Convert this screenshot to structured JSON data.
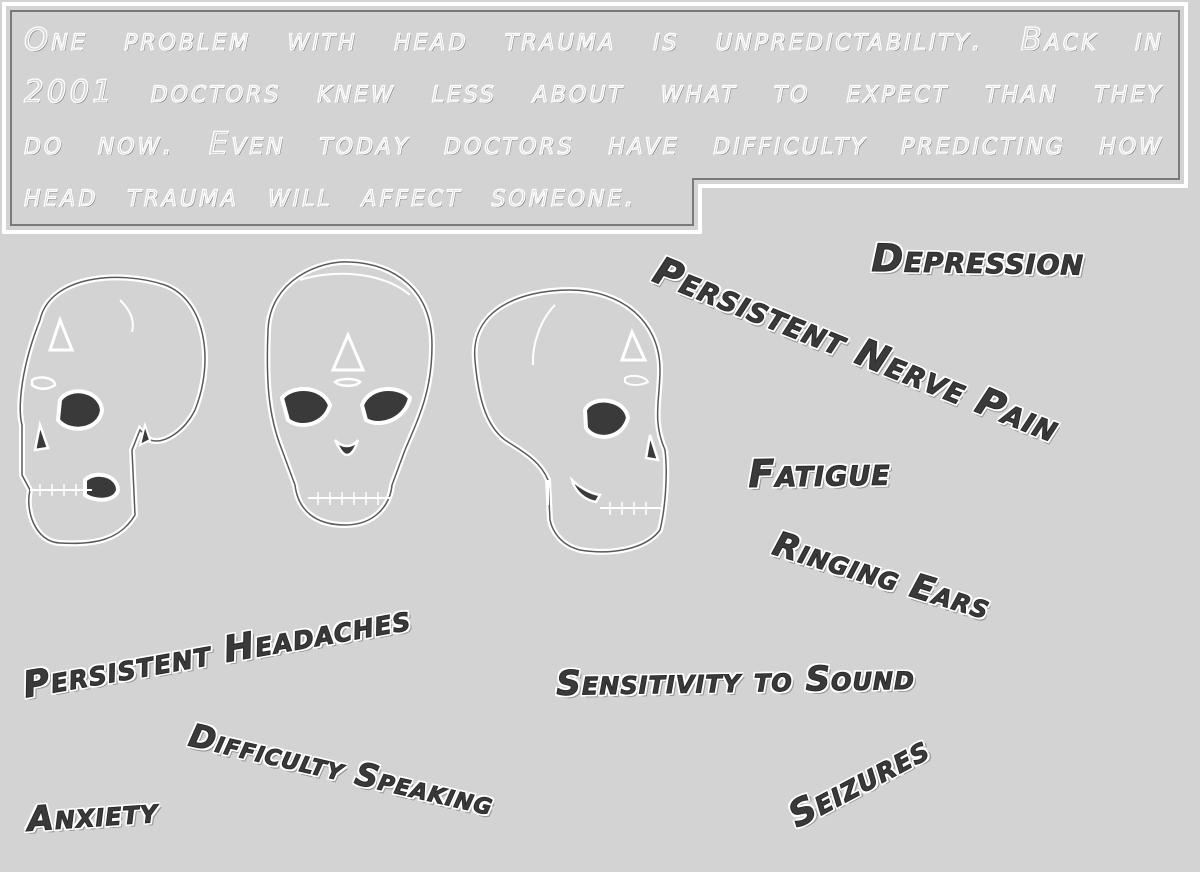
{
  "caption": {
    "text": "One problem with head trauma is unpredictability. Back in 2001 doctors knew less about what to expect than they do now. Even today doctors have difficulty predicting how head trauma will affect someone."
  },
  "symptoms": {
    "depression": "Depression",
    "nerve_pain": "Persistent Nerve Pain",
    "fatigue": "Fatigue",
    "ringing_ears": "Ringing Ears",
    "headaches": "Persistent Headaches",
    "sensitivity": "Sensitivity to Sound",
    "speaking": "Difficulty Speaking",
    "anxiety": "Anxiety",
    "seizures": "Seizures"
  },
  "colors": {
    "background": "#d3d3d3",
    "outline": "#ffffff",
    "fill_dark": "#3a3a3a"
  }
}
